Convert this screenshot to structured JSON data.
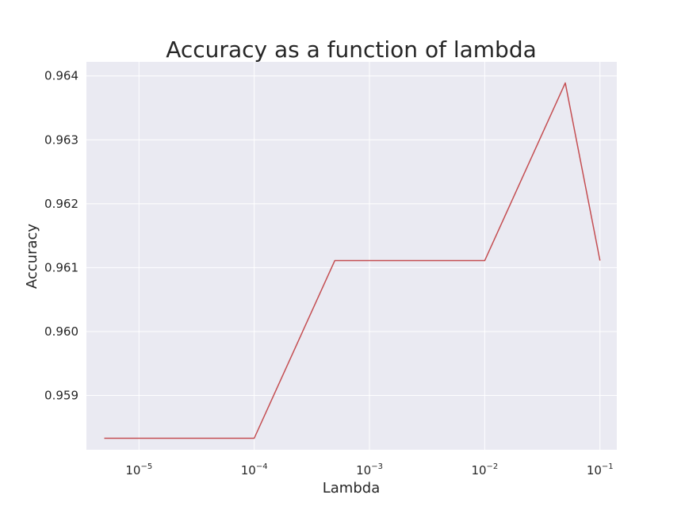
{
  "chart_data": {
    "type": "line",
    "title": "Accuracy as a function of lambda",
    "xlabel": "Lambda",
    "ylabel": "Accuracy",
    "x_scale": "log",
    "xlim": [
      3.5e-06,
      0.14
    ],
    "ylim": [
      0.95815,
      0.96422
    ],
    "x_ticks": [
      {
        "value": 1e-05,
        "base": "10",
        "exp": "−5"
      },
      {
        "value": 0.0001,
        "base": "10",
        "exp": "−4"
      },
      {
        "value": 0.001,
        "base": "10",
        "exp": "−3"
      },
      {
        "value": 0.01,
        "base": "10",
        "exp": "−2"
      },
      {
        "value": 0.1,
        "base": "10",
        "exp": "−1"
      }
    ],
    "y_ticks": [
      {
        "value": 0.959,
        "label": "0.959"
      },
      {
        "value": 0.96,
        "label": "0.960"
      },
      {
        "value": 0.961,
        "label": "0.961"
      },
      {
        "value": 0.962,
        "label": "0.962"
      },
      {
        "value": 0.963,
        "label": "0.963"
      },
      {
        "value": 0.964,
        "label": "0.964"
      }
    ],
    "grid": true,
    "background_color": "#eaeaf2",
    "grid_color": "#ffffff",
    "series": [
      {
        "color": "#c44e52",
        "x": [
          5e-06,
          1e-05,
          5e-05,
          0.0001,
          0.0005,
          0.001,
          0.005,
          0.01,
          0.05,
          0.1
        ],
        "y": [
          0.95833,
          0.95833,
          0.95833,
          0.95833,
          0.96111,
          0.96111,
          0.96111,
          0.96111,
          0.96389,
          0.96111
        ]
      }
    ]
  }
}
